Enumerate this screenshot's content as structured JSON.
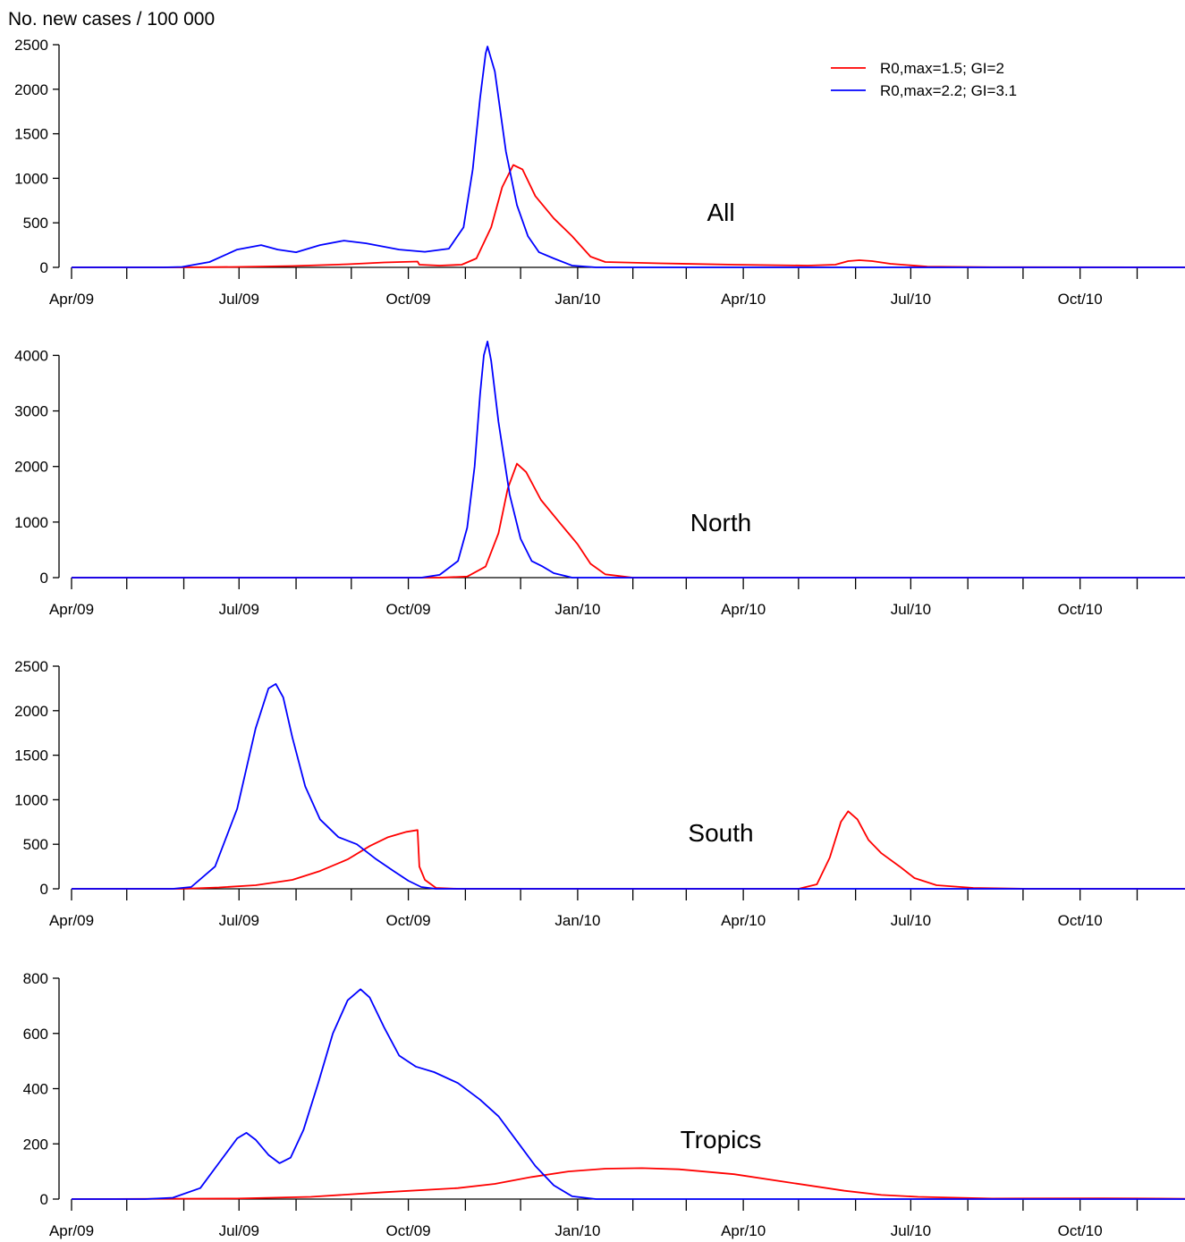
{
  "figure": {
    "ylabel": "No. new cases / 100 000"
  },
  "chart_data": [
    {
      "type": "line",
      "panel_label": "All",
      "ylim": [
        0,
        2500
      ],
      "yticks": [
        0,
        500,
        1000,
        1500,
        2000,
        2500
      ],
      "xlim": [
        0,
        605
      ],
      "x_tick_labels": [
        {
          "x": 0,
          "label": "Apr/09"
        },
        {
          "x": 91,
          "label": "Jul/09"
        },
        {
          "x": 183,
          "label": "Oct/09"
        },
        {
          "x": 275,
          "label": "Jan/10"
        },
        {
          "x": 365,
          "label": "Apr/10"
        },
        {
          "x": 456,
          "label": "Jul/10"
        },
        {
          "x": 548,
          "label": "Oct/10"
        }
      ],
      "x_minor_ticks": [
        30,
        61,
        122,
        152,
        214,
        244,
        305,
        334,
        395,
        426,
        487,
        517,
        579
      ],
      "legend": {
        "placement": "top-right"
      },
      "series": [
        {
          "name": "R0,max=1.5; GI=2",
          "color": "#ff0000",
          "points": [
            [
              0,
              0
            ],
            [
              60,
              0
            ],
            [
              90,
              5
            ],
            [
              120,
              15
            ],
            [
              150,
              35
            ],
            [
              170,
              55
            ],
            [
              188,
              65
            ],
            [
              189,
              30
            ],
            [
              200,
              20
            ],
            [
              212,
              30
            ],
            [
              220,
              100
            ],
            [
              228,
              450
            ],
            [
              234,
              900
            ],
            [
              240,
              1150
            ],
            [
              245,
              1100
            ],
            [
              252,
              800
            ],
            [
              262,
              550
            ],
            [
              272,
              350
            ],
            [
              282,
              120
            ],
            [
              290,
              60
            ],
            [
              320,
              45
            ],
            [
              360,
              30
            ],
            [
              400,
              20
            ],
            [
              415,
              30
            ],
            [
              422,
              70
            ],
            [
              428,
              80
            ],
            [
              435,
              70
            ],
            [
              445,
              40
            ],
            [
              465,
              8
            ],
            [
              500,
              2
            ],
            [
              605,
              0
            ]
          ]
        },
        {
          "name": "R0,max=2.2; GI=3.1",
          "color": "#0000ff",
          "points": [
            [
              0,
              0
            ],
            [
              50,
              0
            ],
            [
              60,
              5
            ],
            [
              75,
              60
            ],
            [
              90,
              200
            ],
            [
              103,
              250
            ],
            [
              112,
              200
            ],
            [
              122,
              170
            ],
            [
              135,
              250
            ],
            [
              148,
              300
            ],
            [
              160,
              270
            ],
            [
              178,
              200
            ],
            [
              192,
              175
            ],
            [
              205,
              210
            ],
            [
              213,
              450
            ],
            [
              218,
              1100
            ],
            [
              222,
              1900
            ],
            [
              225,
              2400
            ],
            [
              226,
              2480
            ],
            [
              230,
              2200
            ],
            [
              236,
              1300
            ],
            [
              242,
              700
            ],
            [
              248,
              350
            ],
            [
              254,
              170
            ],
            [
              262,
              100
            ],
            [
              272,
              20
            ],
            [
              285,
              0
            ],
            [
              605,
              0
            ]
          ]
        }
      ]
    },
    {
      "type": "line",
      "panel_label": "North",
      "ylim": [
        0,
        4200
      ],
      "yticks": [
        0,
        1000,
        2000,
        3000,
        4000
      ],
      "xlim": [
        0,
        605
      ],
      "x_tick_labels": [
        {
          "x": 0,
          "label": "Apr/09"
        },
        {
          "x": 91,
          "label": "Jul/09"
        },
        {
          "x": 183,
          "label": "Oct/09"
        },
        {
          "x": 275,
          "label": "Jan/10"
        },
        {
          "x": 365,
          "label": "Apr/10"
        },
        {
          "x": 456,
          "label": "Jul/10"
        },
        {
          "x": 548,
          "label": "Oct/10"
        }
      ],
      "x_minor_ticks": [
        30,
        61,
        122,
        152,
        214,
        244,
        305,
        334,
        395,
        426,
        487,
        517,
        579
      ],
      "series": [
        {
          "name": "R0,max=1.5; GI=2",
          "color": "#ff0000",
          "points": [
            [
              0,
              0
            ],
            [
              200,
              0
            ],
            [
              215,
              20
            ],
            [
              225,
              200
            ],
            [
              232,
              800
            ],
            [
              237,
              1600
            ],
            [
              242,
              2050
            ],
            [
              247,
              1900
            ],
            [
              255,
              1400
            ],
            [
              265,
              1000
            ],
            [
              275,
              600
            ],
            [
              282,
              250
            ],
            [
              290,
              60
            ],
            [
              305,
              0
            ],
            [
              605,
              0
            ]
          ]
        },
        {
          "name": "R0,max=2.2; GI=3.1",
          "color": "#0000ff",
          "points": [
            [
              0,
              0
            ],
            [
              190,
              0
            ],
            [
              200,
              50
            ],
            [
              210,
              300
            ],
            [
              215,
              900
            ],
            [
              219,
              2000
            ],
            [
              222,
              3300
            ],
            [
              224,
              4000
            ],
            [
              226,
              4250
            ],
            [
              228,
              3900
            ],
            [
              232,
              2800
            ],
            [
              238,
              1500
            ],
            [
              244,
              700
            ],
            [
              250,
              300
            ],
            [
              256,
              200
            ],
            [
              262,
              80
            ],
            [
              272,
              0
            ],
            [
              605,
              0
            ]
          ]
        }
      ]
    },
    {
      "type": "line",
      "panel_label": "South",
      "ylim": [
        0,
        2500
      ],
      "yticks": [
        0,
        500,
        1000,
        1500,
        2000,
        2500
      ],
      "xlim": [
        0,
        605
      ],
      "x_tick_labels": [
        {
          "x": 0,
          "label": "Apr/09"
        },
        {
          "x": 91,
          "label": "Jul/09"
        },
        {
          "x": 183,
          "label": "Oct/09"
        },
        {
          "x": 275,
          "label": "Jan/10"
        },
        {
          "x": 365,
          "label": "Apr/10"
        },
        {
          "x": 456,
          "label": "Jul/10"
        },
        {
          "x": 548,
          "label": "Oct/10"
        }
      ],
      "x_minor_ticks": [
        30,
        61,
        122,
        152,
        214,
        244,
        305,
        334,
        395,
        426,
        487,
        517,
        579
      ],
      "series": [
        {
          "name": "R0,max=1.5; GI=2",
          "color": "#ff0000",
          "points": [
            [
              0,
              0
            ],
            [
              60,
              0
            ],
            [
              80,
              15
            ],
            [
              100,
              40
            ],
            [
              120,
              100
            ],
            [
              135,
              200
            ],
            [
              150,
              330
            ],
            [
              162,
              480
            ],
            [
              172,
              580
            ],
            [
              182,
              640
            ],
            [
              188,
              660
            ],
            [
              189,
              250
            ],
            [
              192,
              100
            ],
            [
              198,
              10
            ],
            [
              210,
              0
            ],
            [
              395,
              0
            ],
            [
              405,
              50
            ],
            [
              412,
              350
            ],
            [
              418,
              750
            ],
            [
              422,
              870
            ],
            [
              427,
              780
            ],
            [
              433,
              550
            ],
            [
              440,
              400
            ],
            [
              450,
              250
            ],
            [
              458,
              120
            ],
            [
              470,
              40
            ],
            [
              490,
              10
            ],
            [
              520,
              0
            ],
            [
              605,
              0
            ]
          ]
        },
        {
          "name": "R0,max=2.2; GI=3.1",
          "color": "#0000ff",
          "points": [
            [
              0,
              0
            ],
            [
              55,
              0
            ],
            [
              65,
              20
            ],
            [
              78,
              250
            ],
            [
              90,
              900
            ],
            [
              100,
              1800
            ],
            [
              107,
              2250
            ],
            [
              111,
              2300
            ],
            [
              115,
              2150
            ],
            [
              120,
              1700
            ],
            [
              127,
              1150
            ],
            [
              135,
              780
            ],
            [
              145,
              580
            ],
            [
              155,
              500
            ],
            [
              165,
              340
            ],
            [
              175,
              200
            ],
            [
              183,
              90
            ],
            [
              190,
              20
            ],
            [
              198,
              0
            ],
            [
              605,
              0
            ]
          ]
        }
      ]
    },
    {
      "type": "line",
      "panel_label": "Tropics",
      "ylim": [
        0,
        800
      ],
      "yticks": [
        0,
        200,
        400,
        600,
        800
      ],
      "xlim": [
        0,
        605
      ],
      "x_tick_labels": [
        {
          "x": 0,
          "label": "Apr/09"
        },
        {
          "x": 91,
          "label": "Jul/09"
        },
        {
          "x": 183,
          "label": "Oct/09"
        },
        {
          "x": 275,
          "label": "Jan/10"
        },
        {
          "x": 365,
          "label": "Apr/10"
        },
        {
          "x": 456,
          "label": "Jul/10"
        },
        {
          "x": 548,
          "label": "Oct/10"
        }
      ],
      "x_minor_ticks": [
        30,
        61,
        122,
        152,
        214,
        244,
        305,
        334,
        395,
        426,
        487,
        517,
        579
      ],
      "series": [
        {
          "name": "R0,max=1.5; GI=2",
          "color": "#ff0000",
          "points": [
            [
              0,
              0
            ],
            [
              90,
              2
            ],
            [
              130,
              8
            ],
            [
              170,
              25
            ],
            [
              210,
              40
            ],
            [
              230,
              55
            ],
            [
              250,
              80
            ],
            [
              270,
              100
            ],
            [
              290,
              110
            ],
            [
              310,
              112
            ],
            [
              330,
              108
            ],
            [
              360,
              90
            ],
            [
              390,
              60
            ],
            [
              420,
              30
            ],
            [
              440,
              15
            ],
            [
              460,
              8
            ],
            [
              500,
              2
            ],
            [
              560,
              3
            ],
            [
              590,
              2
            ],
            [
              605,
              1
            ]
          ]
        },
        {
          "name": "R0,max=2.2; GI=3.1",
          "color": "#0000ff",
          "points": [
            [
              0,
              0
            ],
            [
              40,
              0
            ],
            [
              55,
              5
            ],
            [
              70,
              40
            ],
            [
              80,
              130
            ],
            [
              90,
              220
            ],
            [
              95,
              240
            ],
            [
              100,
              215
            ],
            [
              107,
              160
            ],
            [
              113,
              130
            ],
            [
              119,
              150
            ],
            [
              126,
              250
            ],
            [
              134,
              420
            ],
            [
              142,
              600
            ],
            [
              150,
              720
            ],
            [
              157,
              760
            ],
            [
              162,
              730
            ],
            [
              170,
              620
            ],
            [
              178,
              520
            ],
            [
              187,
              480
            ],
            [
              197,
              460
            ],
            [
              210,
              420
            ],
            [
              222,
              360
            ],
            [
              232,
              300
            ],
            [
              242,
              210
            ],
            [
              252,
              120
            ],
            [
              262,
              50
            ],
            [
              272,
              10
            ],
            [
              285,
              0
            ],
            [
              605,
              0
            ]
          ]
        }
      ]
    }
  ]
}
